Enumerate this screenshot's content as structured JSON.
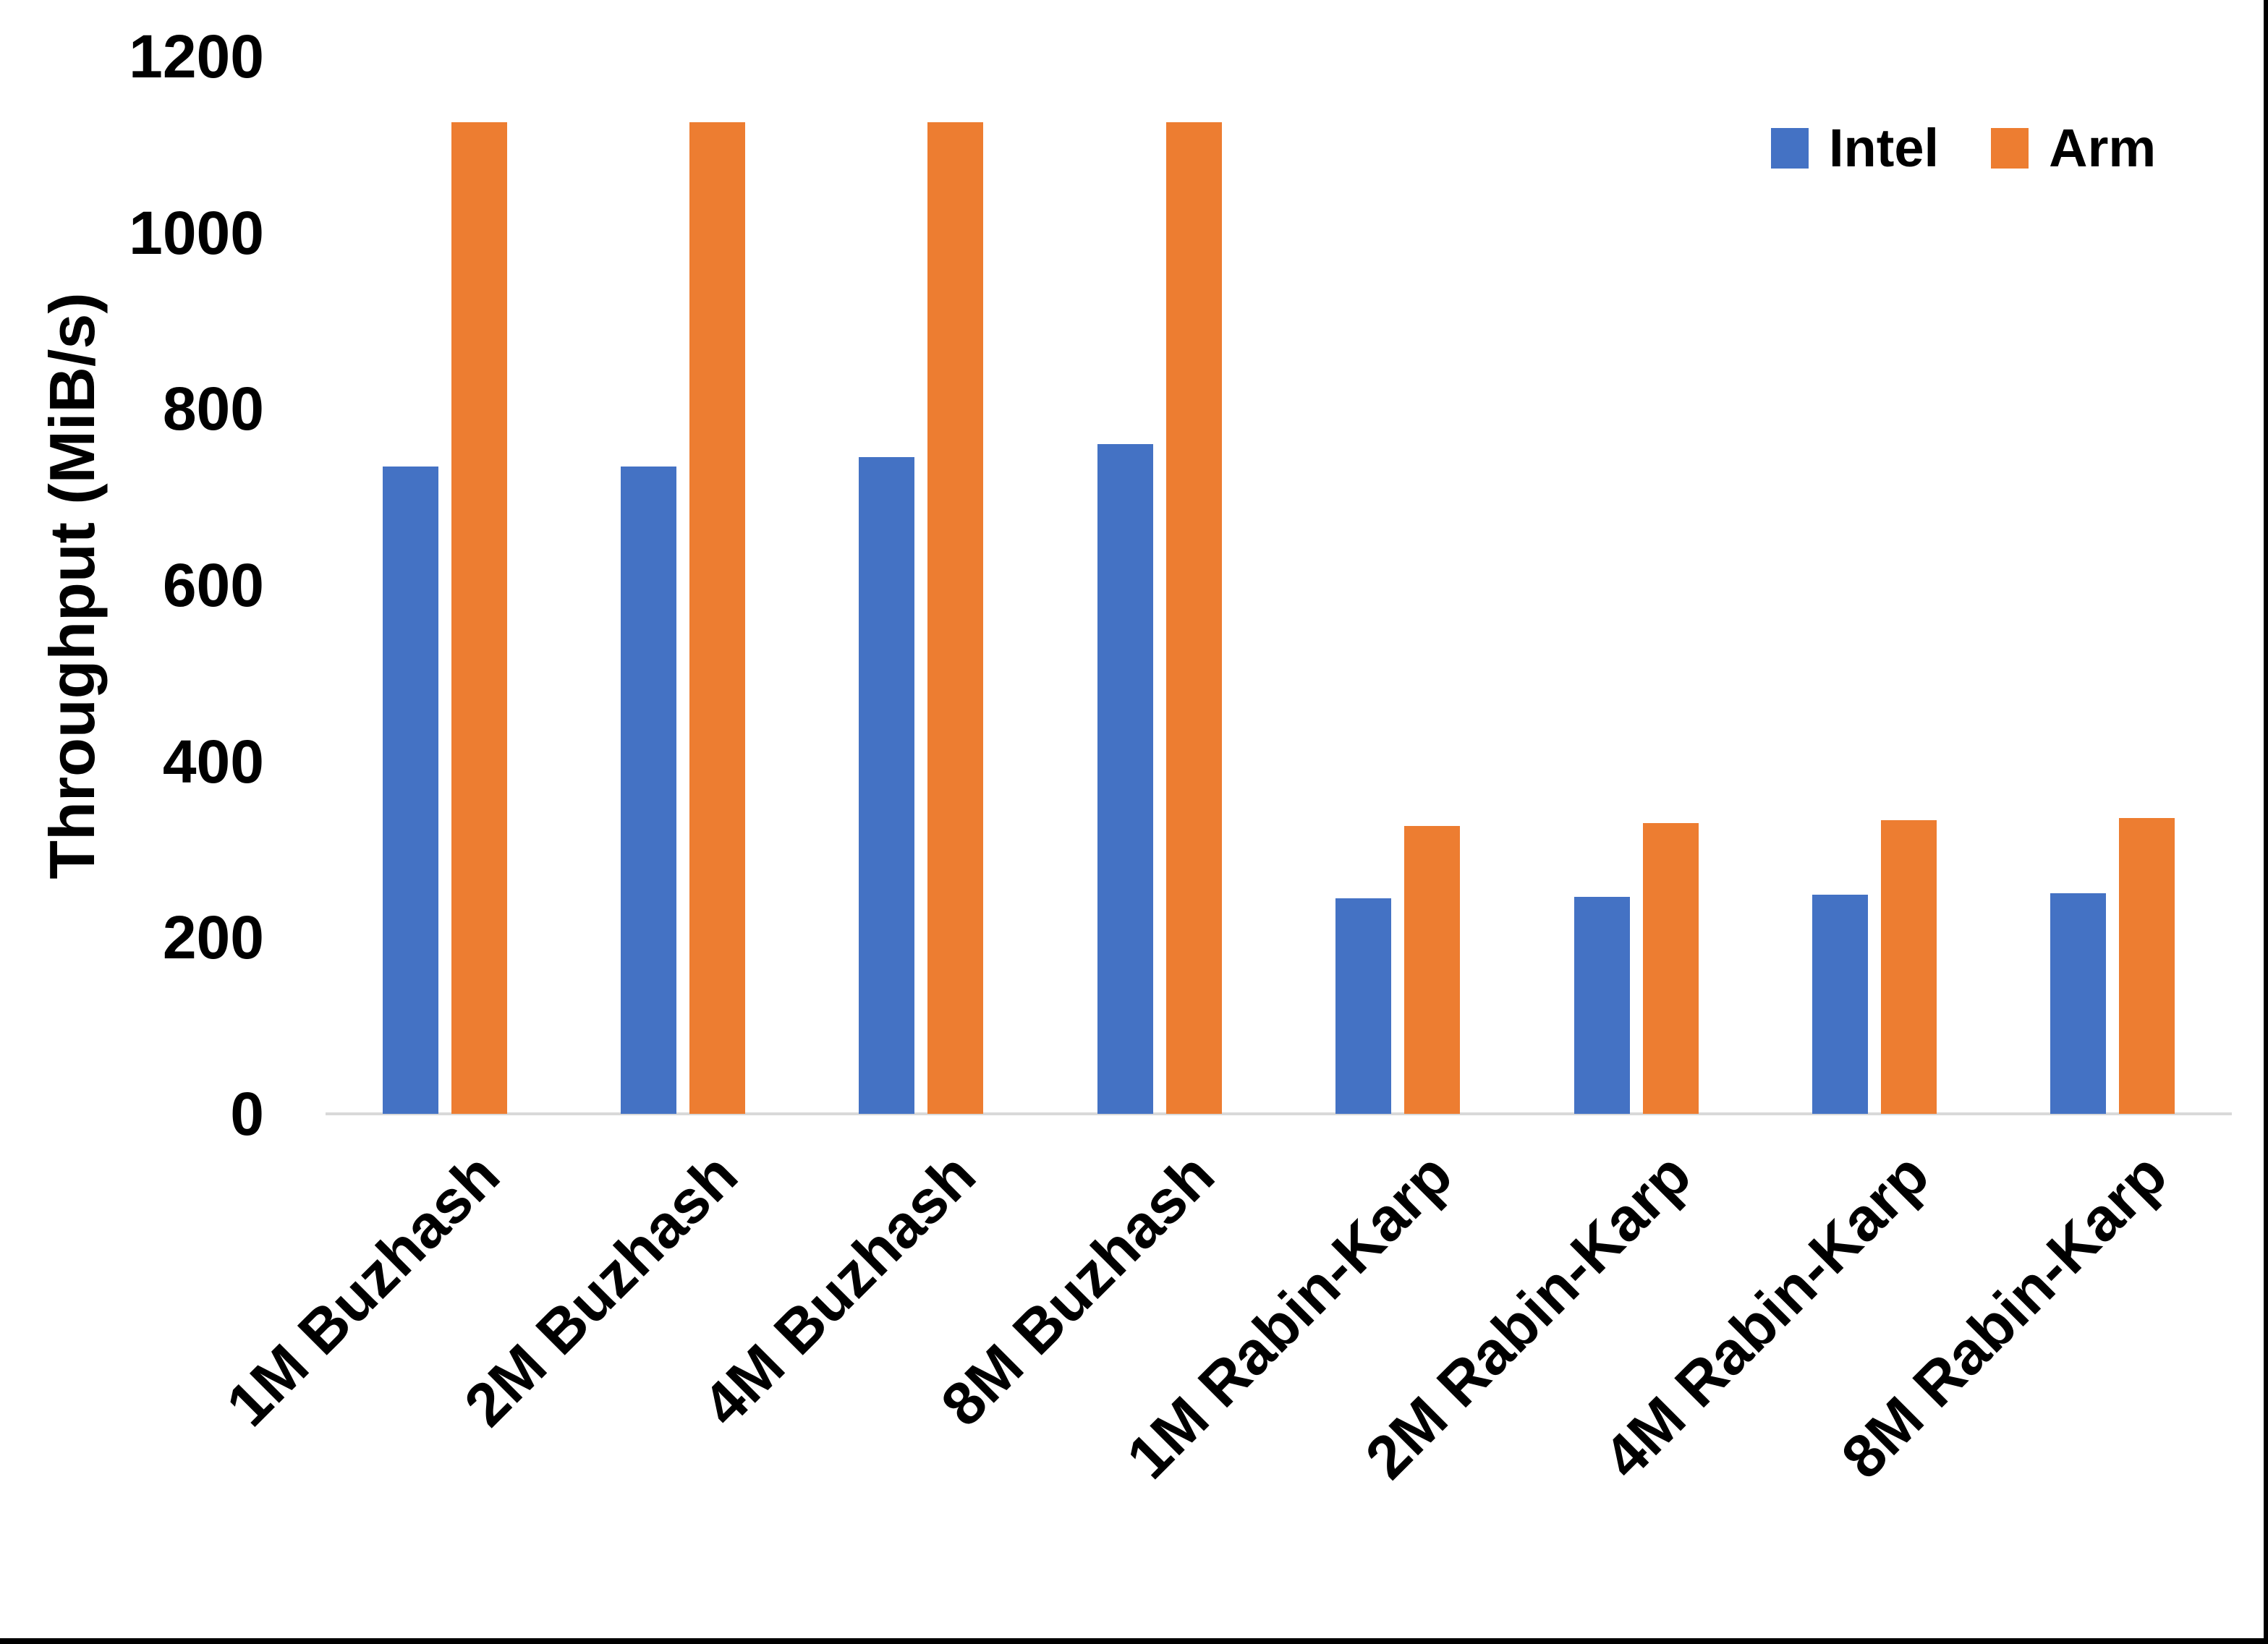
{
  "chart_data": {
    "type": "bar",
    "title": "",
    "ylabel": "Throughput (MiB/s)",
    "xlabel": "",
    "categories": [
      "1M Buzhash",
      "2M Buzhash",
      "4M Buzhash",
      "8M Buzhash",
      "1M Rabin-Karp",
      "2M Rabin-Karp",
      "4M Rabin-Karp",
      "8M Rabin-Karp"
    ],
    "series": [
      {
        "name": "Intel",
        "color": "#4472C4",
        "values": [
          735,
          735,
          745,
          760,
          245,
          246,
          249,
          250
        ]
      },
      {
        "name": "Arm",
        "color": "#ED7D31",
        "values": [
          1125,
          1125,
          1125,
          1125,
          327,
          330,
          333,
          336
        ]
      }
    ],
    "ylim": [
      0,
      1200
    ],
    "yticks": [
      0,
      200,
      400,
      600,
      800,
      1000,
      1200
    ],
    "grid": false,
    "legend_position": "top-right",
    "axis_line_color": "#D9D9D9",
    "text_color": "#000000",
    "background_color": "#FFFFFF",
    "screen_edge_color": "#000000"
  }
}
